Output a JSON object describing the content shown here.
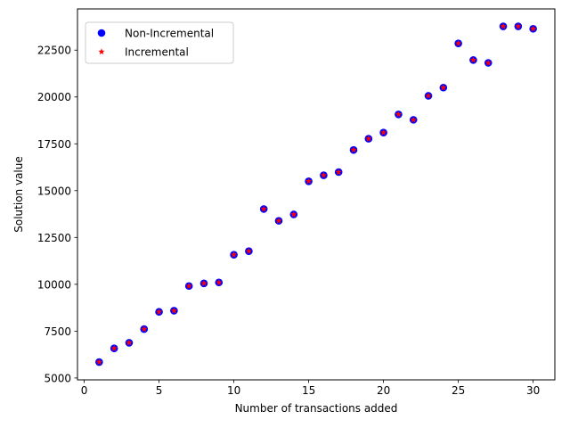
{
  "chart_data": {
    "type": "scatter",
    "title": "",
    "xlabel": "Number of transactions added",
    "ylabel": "Solution value",
    "xlim": [
      -0.45,
      31.45
    ],
    "ylim": [
      4900,
      24700
    ],
    "xticks": [
      0,
      5,
      10,
      15,
      20,
      25,
      30
    ],
    "yticks": [
      5000,
      7500,
      10000,
      12500,
      15000,
      17500,
      20000,
      22500
    ],
    "grid": false,
    "legend_position": "upper left",
    "x": [
      1,
      2,
      3,
      4,
      5,
      6,
      7,
      8,
      9,
      10,
      11,
      12,
      13,
      14,
      15,
      16,
      17,
      18,
      19,
      20,
      21,
      22,
      23,
      24,
      25,
      26,
      27,
      28,
      29,
      30
    ],
    "series": [
      {
        "name": "Non-Incremental",
        "marker": "circle",
        "color": "#0000ff",
        "values": [
          5850,
          6580,
          6880,
          7610,
          8530,
          8590,
          9910,
          10050,
          10100,
          11580,
          11770,
          14020,
          13390,
          13730,
          15500,
          15820,
          15990,
          17170,
          17770,
          18100,
          19070,
          18780,
          20060,
          20500,
          22860,
          21970,
          21820,
          23770,
          23770,
          23640
        ]
      },
      {
        "name": "Incremental",
        "marker": "star",
        "color": "#ff0000",
        "values": [
          5850,
          6580,
          6880,
          7610,
          8530,
          8590,
          9910,
          10050,
          10100,
          11580,
          11770,
          14020,
          13390,
          13730,
          15500,
          15820,
          15990,
          17170,
          17770,
          18100,
          19070,
          18780,
          20060,
          20500,
          22860,
          21970,
          21820,
          23770,
          23770,
          23640
        ]
      }
    ]
  }
}
